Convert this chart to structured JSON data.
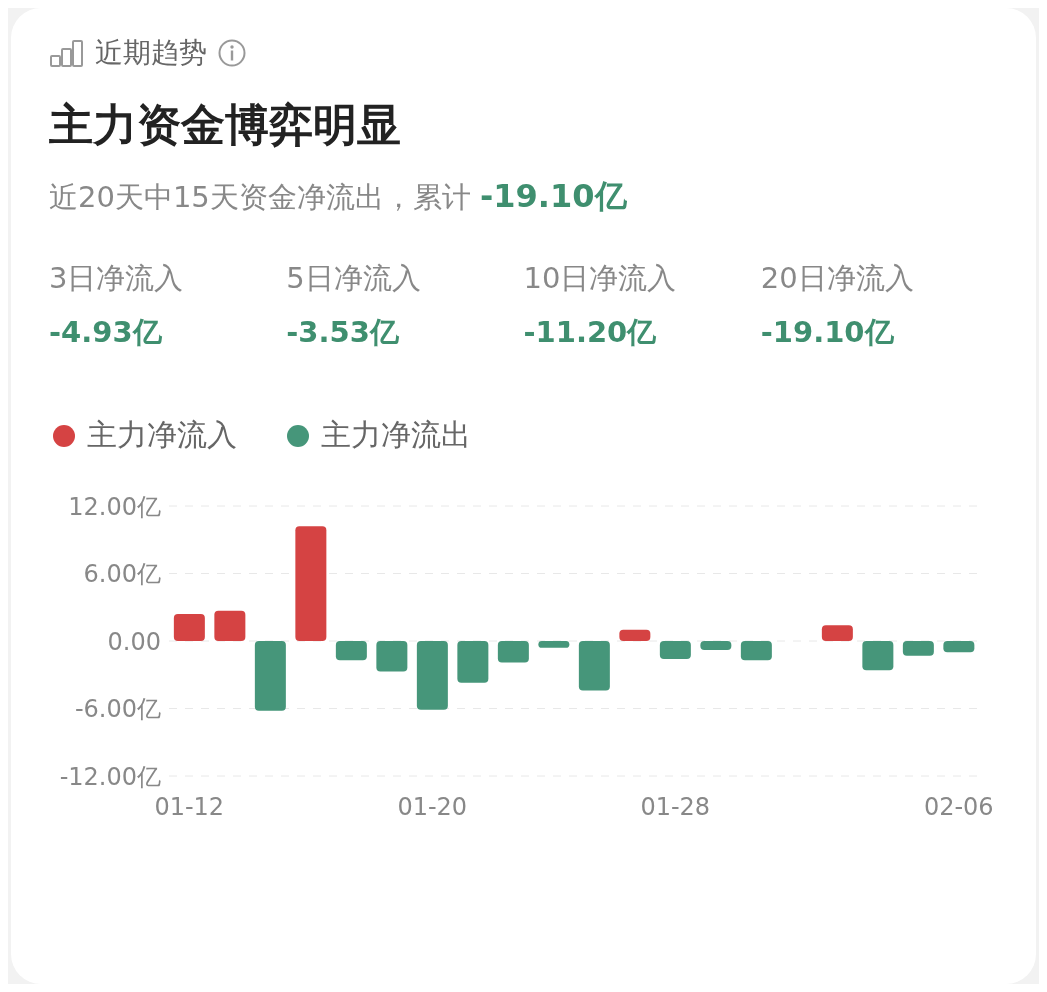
{
  "chart_data": {
    "type": "bar",
    "title": "主力资金博弈明显",
    "subtitle": "近20天中15天资金净流出，累计 -19.10亿",
    "annotations": [
      "近期趋势",
      "3日净流入",
      "-4.93亿",
      "5日净流入",
      "-3.53亿",
      "10日净流入",
      "-11.20亿",
      "20日净流入",
      "-19.10亿"
    ],
    "categories": [
      "01-12",
      null,
      null,
      null,
      null,
      null,
      "01-20",
      null,
      null,
      null,
      null,
      null,
      "01-28",
      null,
      null,
      null,
      null,
      null,
      null,
      "02-06"
    ],
    "series": [
      {
        "name": "主力净流入",
        "color": "#d54343",
        "values": [
          2.4,
          2.7,
          null,
          10.2,
          null,
          null,
          null,
          null,
          null,
          null,
          null,
          1.0,
          null,
          null,
          null,
          null,
          1.4,
          null,
          null,
          null
        ]
      },
      {
        "name": "主力净流出",
        "color": "#46967a",
        "values": [
          null,
          null,
          -6.2,
          null,
          -1.7,
          -2.7,
          -6.1,
          -3.7,
          -1.9,
          -0.6,
          -4.4,
          null,
          -1.6,
          -0.8,
          -1.7,
          0,
          null,
          -2.6,
          -1.3,
          -1.0
        ]
      }
    ],
    "stacked": true,
    "ylim": [
      -12,
      12
    ],
    "yticks": [
      {
        "value": 12,
        "label": "12.00亿"
      },
      {
        "value": 6,
        "label": "6.00亿"
      },
      {
        "value": 0,
        "label": "0.00"
      },
      {
        "value": -6,
        "label": "-6.00亿"
      },
      {
        "value": -12,
        "label": "-12.00亿"
      }
    ],
    "grid": "y",
    "legend": "top left"
  }
}
